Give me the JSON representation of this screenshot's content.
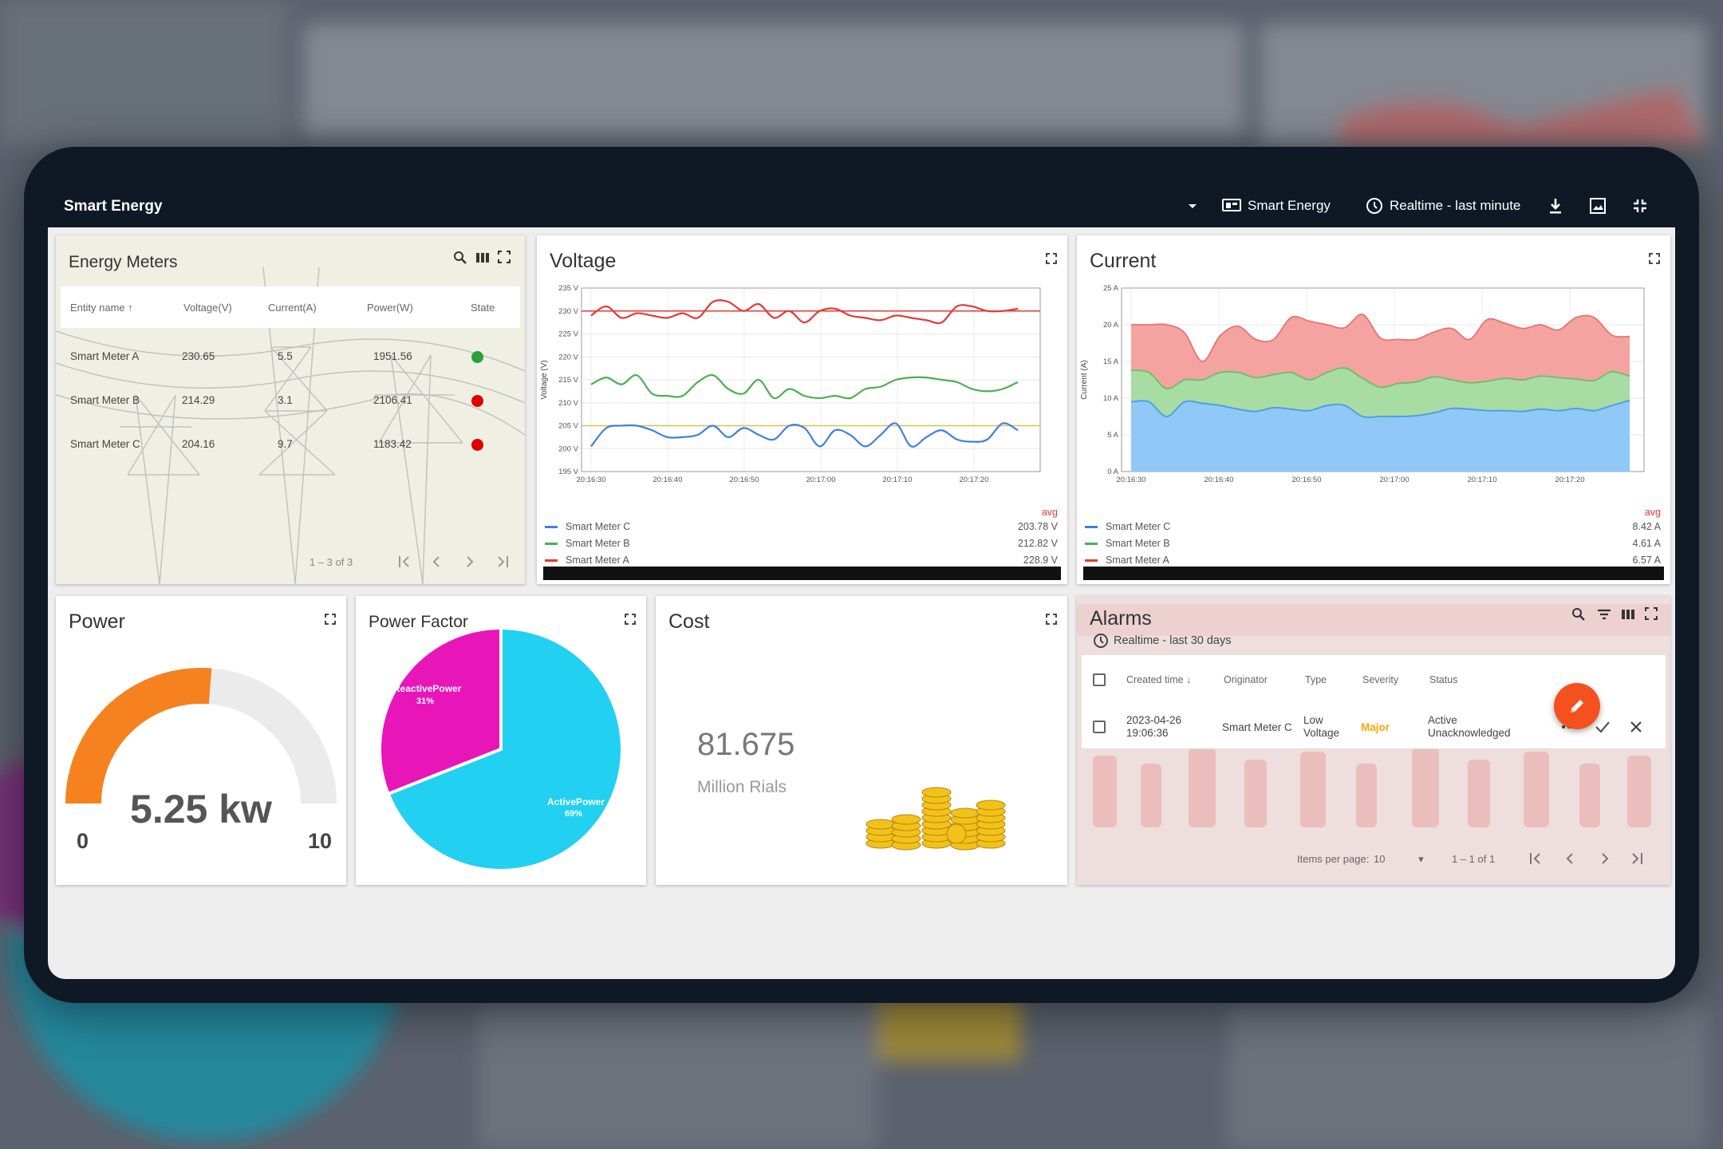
{
  "app": {
    "title": "Smart Energy",
    "toolbar": {
      "dashboard_label": "Smart Energy",
      "timewindow_label": "Realtime - last minute"
    }
  },
  "energy_meters": {
    "title": "Energy Meters",
    "columns": [
      "Entity name",
      "Voltage(V)",
      "Current(A)",
      "Power(W)",
      "State"
    ],
    "rows": [
      {
        "name": "Smart Meter A",
        "voltage": "230.65",
        "current": "5.5",
        "power": "1951.56",
        "state_color": "#2e9e3a"
      },
      {
        "name": "Smart Meter B",
        "voltage": "214.29",
        "current": "3.1",
        "power": "2106.41",
        "state_color": "#e00000"
      },
      {
        "name": "Smart Meter C",
        "voltage": "204.16",
        "current": "9.7",
        "power": "1183.42",
        "state_color": "#e00000"
      }
    ],
    "pagination": "1 – 3 of 3"
  },
  "voltage": {
    "title": "Voltage",
    "legend_header": "avg",
    "legend": [
      {
        "name": "Smart Meter C",
        "value": "203.78 V",
        "color": "#3f7fe0"
      },
      {
        "name": "Smart Meter B",
        "value": "212.82 V",
        "color": "#4caf50"
      },
      {
        "name": "Smart Meter A",
        "value": "228.9 V",
        "color": "#e53935"
      }
    ]
  },
  "current": {
    "title": "Current",
    "legend_header": "avg",
    "legend": [
      {
        "name": "Smart Meter C",
        "value": "8.42 A",
        "color": "#3f7fe0"
      },
      {
        "name": "Smart Meter B",
        "value": "4.61 A",
        "color": "#4caf50"
      },
      {
        "name": "Smart Meter A",
        "value": "6.57 A",
        "color": "#e53935"
      }
    ]
  },
  "power": {
    "title": "Power",
    "value_label": "5.25 kw",
    "value": 5.25,
    "min": "0",
    "max": "10",
    "fill_color": "#f5821f"
  },
  "power_factor": {
    "title": "Power Factor",
    "reactive_label": "ReactivePower",
    "reactive_pct": "31%",
    "active_label": "ActivePower",
    "active_pct": "69%",
    "reactive_color": "#e815b8",
    "active_color": "#22d0f2"
  },
  "cost": {
    "title": "Cost",
    "value": "81.675",
    "unit": "Million Rials"
  },
  "alarms": {
    "title": "Alarms",
    "timewindow": "Realtime - last 30 days",
    "columns": [
      "Created time",
      "Originator",
      "Type",
      "Severity",
      "Status"
    ],
    "rows": [
      {
        "date": "2023-04-26",
        "time": "19:06:36",
        "originator": "Smart Meter C",
        "type_line1": "Low",
        "type_line2": "Voltage",
        "severity": "Major",
        "status_line1": "Active",
        "status_line2": "Unacknowledged"
      }
    ],
    "items_per_page_label": "Items per page:",
    "items_per_page": "10",
    "pagination": "1 – 1 of 1"
  },
  "chart_data": [
    {
      "type": "line",
      "title": "Voltage",
      "ylabel": "Voltage (V)",
      "ylim": [
        195,
        235
      ],
      "y_ticks": [
        "195 V",
        "200 V",
        "205 V",
        "210 V",
        "215 V",
        "220 V",
        "225 V",
        "230 V",
        "235 V"
      ],
      "x_ticks": [
        "20:16:30",
        "20:16:40",
        "20:16:50",
        "20:17:00",
        "20:17:10",
        "20:17:20"
      ],
      "x": [
        "20:16:30",
        "20:16:32",
        "20:16:34",
        "20:16:36",
        "20:16:38",
        "20:16:40",
        "20:16:42",
        "20:16:44",
        "20:16:46",
        "20:16:48",
        "20:16:50",
        "20:16:52",
        "20:16:54",
        "20:16:56",
        "20:16:58",
        "20:17:00",
        "20:17:02",
        "20:17:04",
        "20:17:06",
        "20:17:08",
        "20:17:10",
        "20:17:12",
        "20:17:14",
        "20:17:16",
        "20:17:18",
        "20:17:20",
        "20:17:22",
        "20:17:24",
        "20:17:26"
      ],
      "series": [
        {
          "name": "Smart Meter A",
          "color": "#e53935",
          "values": [
            229,
            231,
            228.5,
            229.5,
            229,
            228.5,
            229.5,
            228.5,
            232,
            232,
            230,
            231.5,
            228.5,
            230,
            227.5,
            230,
            230.5,
            229,
            228.5,
            228,
            229,
            228.5,
            228,
            227.5,
            231,
            231,
            230,
            230,
            230.5
          ]
        },
        {
          "name": "Smart Meter B",
          "color": "#4caf50",
          "values": [
            214,
            215.5,
            214,
            216,
            212,
            211.5,
            211.5,
            214.5,
            216,
            213,
            212,
            215,
            211,
            213,
            211.5,
            211,
            211.5,
            211,
            213,
            213.5,
            215,
            215.5,
            215.5,
            215,
            214.5,
            213,
            212.5,
            213,
            214.5
          ]
        },
        {
          "name": "Smart Meter C",
          "color": "#3f7fe0",
          "values": [
            200.5,
            204.5,
            205,
            205,
            204,
            202.5,
            202.5,
            203,
            205,
            202.5,
            204.5,
            203,
            202,
            205,
            204.5,
            200.5,
            204,
            203,
            200.5,
            203,
            205.5,
            200.5,
            202.5,
            204,
            202,
            201.5,
            202,
            205.5,
            204
          ]
        }
      ],
      "reference_lines": [
        {
          "value": 230,
          "color": "#e53935"
        },
        {
          "value": 205,
          "color": "#e0c050"
        }
      ]
    },
    {
      "type": "area",
      "title": "Current",
      "ylabel": "Current (A)",
      "ylim": [
        0,
        25
      ],
      "y_ticks": [
        "0 A",
        "5 A",
        "10 A",
        "15 A",
        "20 A",
        "25 A"
      ],
      "x_ticks": [
        "20:16:30",
        "20:16:40",
        "20:16:50",
        "20:17:00",
        "20:17:10",
        "20:17:20"
      ],
      "stacked": true,
      "x": [
        "20:16:30",
        "20:16:32",
        "20:16:34",
        "20:16:36",
        "20:16:38",
        "20:16:40",
        "20:16:42",
        "20:16:44",
        "20:16:46",
        "20:16:48",
        "20:16:50",
        "20:16:52",
        "20:16:54",
        "20:16:56",
        "20:16:58",
        "20:17:00",
        "20:17:02",
        "20:17:04",
        "20:17:06",
        "20:17:08",
        "20:17:10",
        "20:17:12",
        "20:17:14",
        "20:17:16",
        "20:17:18",
        "20:17:20",
        "20:17:22",
        "20:17:24",
        "20:17:26"
      ],
      "series": [
        {
          "name": "Smart Meter C",
          "color": "#90c8f8",
          "values": [
            9.5,
            9.5,
            7.5,
            9.5,
            9.3,
            9.0,
            8.5,
            8.2,
            8.7,
            8.5,
            8.3,
            9.0,
            9.0,
            7.5,
            7.5,
            7.5,
            7.6,
            8.0,
            8.6,
            8.5,
            8.3,
            8.3,
            8.2,
            8.5,
            8.3,
            8.6,
            8.3,
            9.0,
            9.7
          ]
        },
        {
          "name": "Smart Meter B",
          "color": "#a7dca3",
          "values": [
            4.3,
            4.0,
            3.8,
            3.0,
            3.2,
            4.5,
            5.0,
            4.6,
            4.5,
            5.0,
            4.2,
            4.5,
            5.1,
            5.2,
            4.0,
            4.5,
            4.6,
            4.9,
            3.9,
            3.6,
            4.0,
            4.4,
            4.3,
            4.5,
            4.5,
            4.0,
            4.1,
            4.6,
            3.3
          ]
        },
        {
          "name": "Smart Meter A",
          "color": "#f4a3a0",
          "values": [
            6.2,
            6.5,
            8.7,
            6.4,
            2.5,
            5.0,
            6.3,
            5.2,
            4.8,
            7.5,
            8.0,
            6.5,
            5.5,
            8.7,
            6.7,
            6.0,
            5.8,
            6.1,
            7.0,
            5.9,
            8.4,
            7.5,
            7.0,
            7.0,
            6.5,
            8.4,
            8.6,
            5.0,
            5.4
          ]
        }
      ]
    },
    {
      "type": "pie",
      "title": "Power Factor",
      "categories": [
        "ReactivePower",
        "ActivePower"
      ],
      "values": [
        31,
        69
      ],
      "colors": [
        "#e815b8",
        "#22d0f2"
      ]
    }
  ]
}
